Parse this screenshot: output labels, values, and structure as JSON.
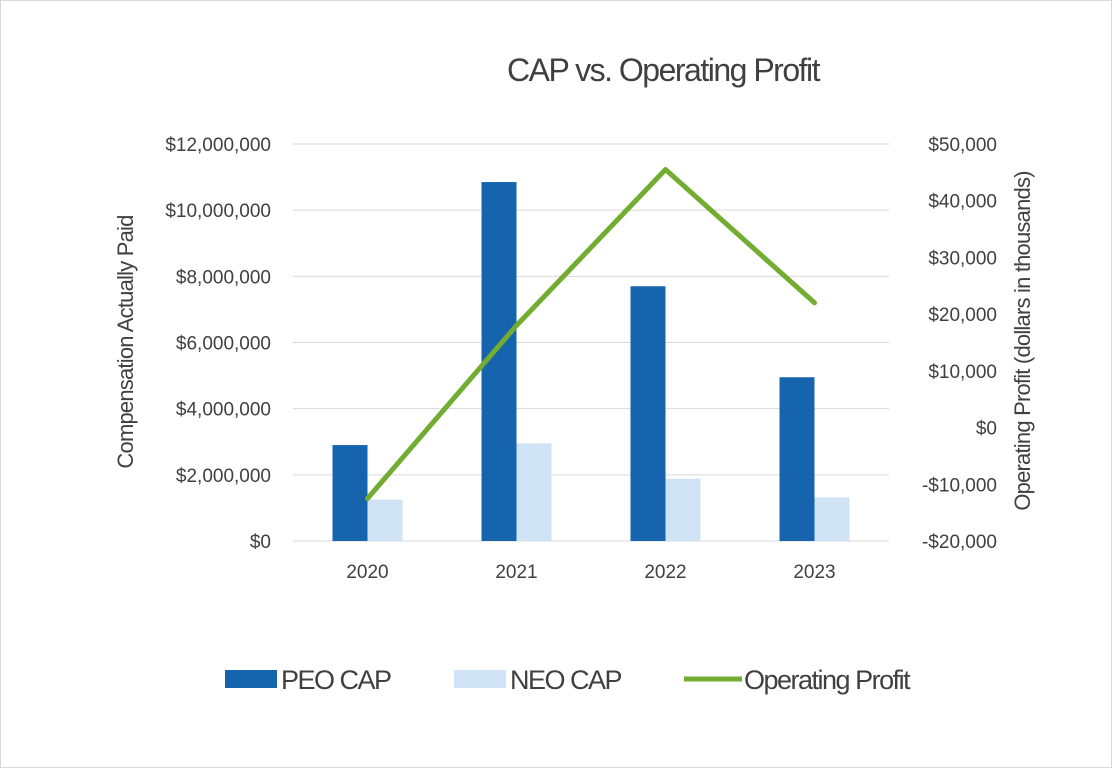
{
  "chart_data": {
    "type": "bar",
    "title": "CAP vs. Operating Profit",
    "categories": [
      "2020",
      "2021",
      "2022",
      "2023"
    ],
    "series": [
      {
        "name": "PEO CAP",
        "kind": "bar",
        "axis": "left",
        "color": "#1764ae",
        "values": [
          2900000,
          10850000,
          7700000,
          4950000
        ]
      },
      {
        "name": "NEO CAP",
        "kind": "bar",
        "axis": "left",
        "color": "#cfe3f5",
        "values": [
          1250000,
          2950000,
          1880000,
          1320000
        ]
      },
      {
        "name": "Operating Profit",
        "kind": "line",
        "axis": "right",
        "color": "#72ac30",
        "values": [
          -12500,
          18000,
          45500,
          22000
        ]
      }
    ],
    "ylabel": "Compensation Actually Paid",
    "y2label": "Operating Profit (dollars in thousands)",
    "ylim": [
      0,
      12000000
    ],
    "y2lim": [
      -20000,
      50000
    ],
    "yticks": [
      0,
      2000000,
      4000000,
      6000000,
      8000000,
      10000000,
      12000000
    ],
    "yticklabels": [
      "$0",
      "$2,000,000",
      "$4,000,000",
      "$6,000,000",
      "$8,000,000",
      "$10,000,000",
      "$12,000,000"
    ],
    "y2ticks": [
      -20000,
      -10000,
      0,
      10000,
      20000,
      30000,
      40000,
      50000
    ],
    "y2ticklabels": [
      "-$20,000",
      "-$10,000",
      "$0",
      "$10,000",
      "$20,000",
      "$30,000",
      "$40,000",
      "$50,000"
    ],
    "grid": true,
    "legend": "bottom"
  }
}
